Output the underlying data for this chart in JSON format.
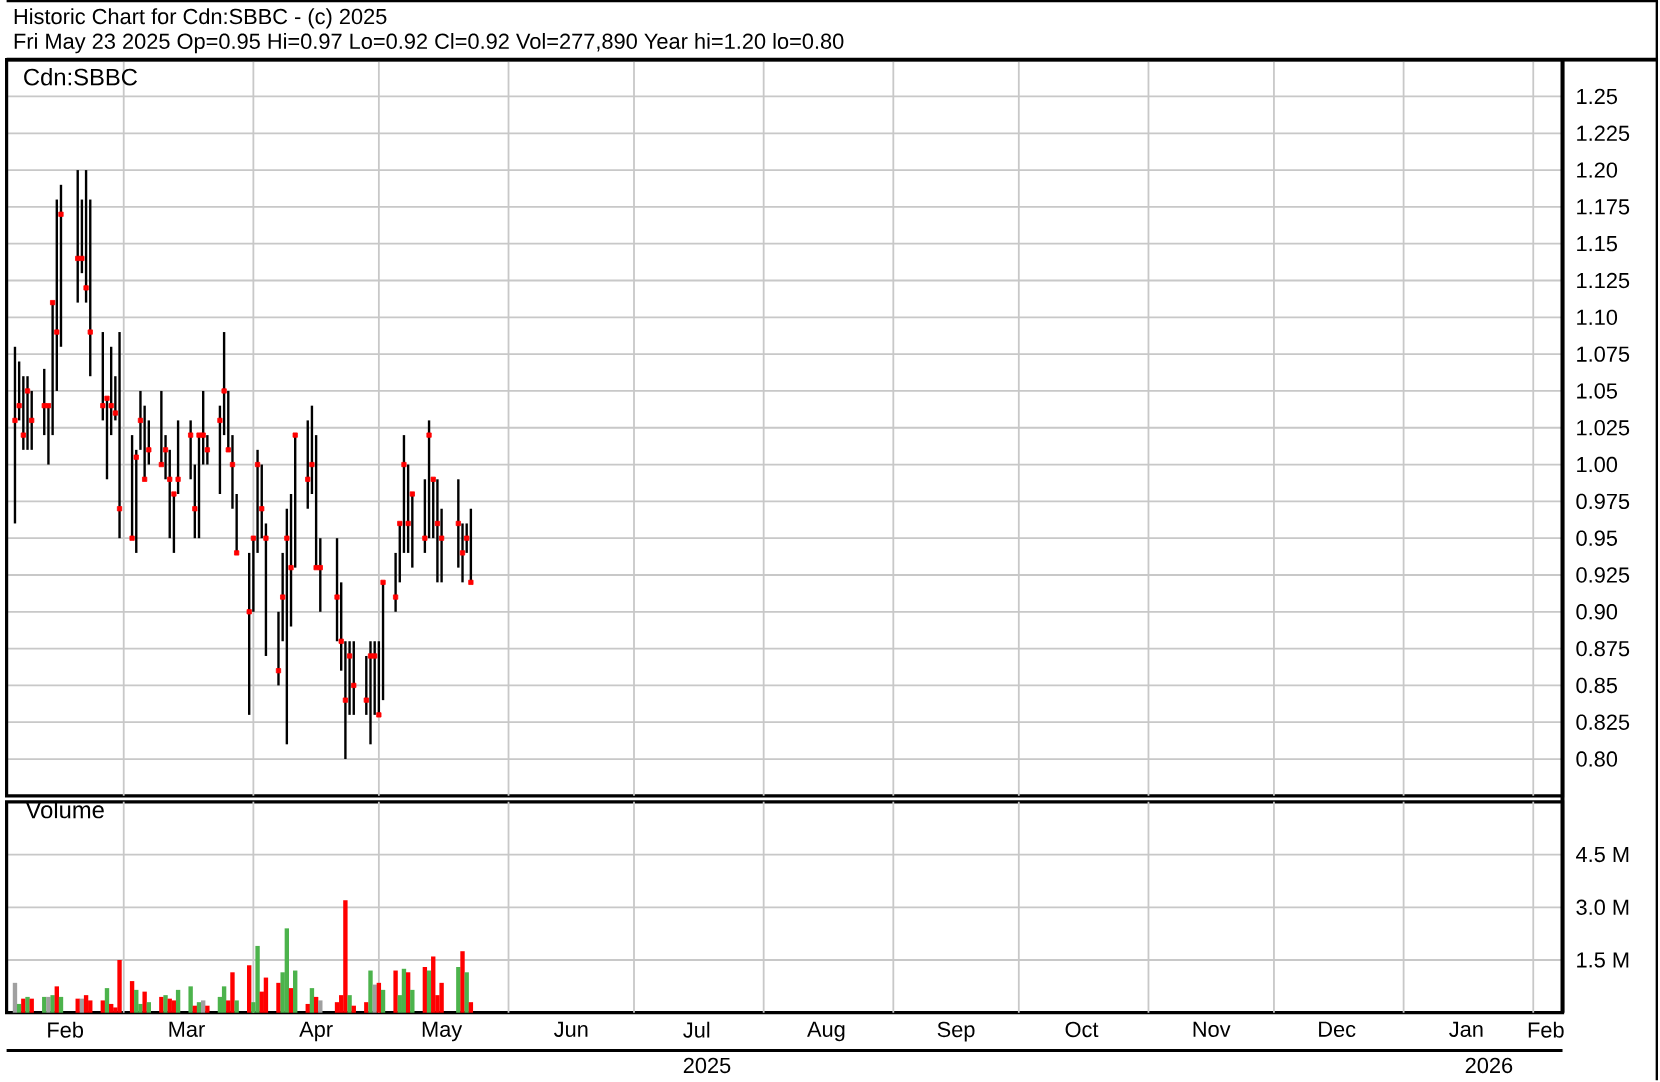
{
  "chart_data": [
    {
      "type": "scatter",
      "title": "Historic Chart for Cdn:SBBC - (c) 2025",
      "subtitle": "Fri May 23 2025  Op=0.95  Hi=0.97  Lo=0.92  Cl=0.92  Vol=277,890  Year hi=1.20  lo=0.80",
      "annotations": [
        "Cdn:SBBC"
      ],
      "color": "#ff0000",
      "marker": "square",
      "grid": true,
      "tick_labels": "y",
      "x": [
        "2025-02-03",
        "2025-02-04",
        "2025-02-05",
        "2025-02-06",
        "2025-02-07",
        "2025-02-10",
        "2025-02-11",
        "2025-02-12",
        "2025-02-13",
        "2025-02-14",
        "2025-02-18",
        "2025-02-19",
        "2025-02-20",
        "2025-02-21",
        "2025-02-24",
        "2025-02-25",
        "2025-02-26",
        "2025-02-27",
        "2025-02-28",
        "2025-03-03",
        "2025-03-04",
        "2025-03-05",
        "2025-03-06",
        "2025-03-07",
        "2025-03-10",
        "2025-03-11",
        "2025-03-12",
        "2025-03-13",
        "2025-03-14",
        "2025-03-17",
        "2025-03-18",
        "2025-03-19",
        "2025-03-20",
        "2025-03-21",
        "2025-03-24",
        "2025-03-25",
        "2025-03-26",
        "2025-03-27",
        "2025-03-28",
        "2025-03-31",
        "2025-04-01",
        "2025-04-02",
        "2025-04-03",
        "2025-04-04",
        "2025-04-07",
        "2025-04-08",
        "2025-04-09",
        "2025-04-10",
        "2025-04-11",
        "2025-04-14",
        "2025-04-15",
        "2025-04-16",
        "2025-04-17",
        "2025-04-21",
        "2025-04-22",
        "2025-04-23",
        "2025-04-24",
        "2025-04-25",
        "2025-04-28",
        "2025-04-29",
        "2025-04-30",
        "2025-05-01",
        "2025-05-02",
        "2025-05-05",
        "2025-05-06",
        "2025-05-07",
        "2025-05-08",
        "2025-05-09",
        "2025-05-12",
        "2025-05-13",
        "2025-05-14",
        "2025-05-15",
        "2025-05-16",
        "2025-05-20",
        "2025-05-21",
        "2025-05-22",
        "2025-05-23"
      ],
      "values": [
        1.03,
        1.04,
        1.02,
        1.05,
        1.03,
        1.04,
        1.04,
        1.11,
        1.09,
        1.17,
        1.14,
        1.14,
        1.12,
        1.09,
        1.04,
        1.045,
        1.04,
        1.035,
        0.97,
        0.95,
        1.005,
        1.03,
        0.99,
        1.01,
        1.0,
        1.01,
        0.99,
        0.98,
        0.99,
        1.02,
        0.97,
        1.02,
        1.02,
        1.01,
        1.03,
        1.05,
        1.01,
        1.0,
        0.94,
        0.9,
        0.95,
        1.0,
        0.97,
        0.95,
        0.86,
        0.91,
        0.95,
        0.93,
        1.02,
        0.99,
        1.0,
        0.93,
        0.93,
        0.91,
        0.88,
        0.84,
        0.87,
        0.85,
        0.84,
        0.87,
        0.87,
        0.83,
        0.92,
        0.91,
        0.96,
        1.0,
        0.96,
        0.98,
        0.95,
        1.02,
        0.99,
        0.96,
        0.95,
        0.96,
        0.94,
        0.95,
        0.92
      ],
      "errors": [
        [
          0.96,
          1.08
        ],
        [
          1.03,
          1.07
        ],
        [
          1.01,
          1.06
        ],
        [
          1.01,
          1.06
        ],
        [
          1.01,
          1.05
        ],
        [
          1.02,
          1.065
        ],
        [
          1.0,
          1.04
        ],
        [
          1.02,
          1.11
        ],
        [
          1.05,
          1.18
        ],
        [
          1.08,
          1.19
        ],
        [
          1.11,
          1.2
        ],
        [
          1.13,
          1.18
        ],
        [
          1.11,
          1.2
        ],
        [
          1.06,
          1.18
        ],
        [
          1.03,
          1.09
        ],
        [
          0.99,
          1.045
        ],
        [
          1.02,
          1.08
        ],
        [
          1.03,
          1.06
        ],
        [
          0.95,
          1.09
        ],
        [
          0.95,
          1.02
        ],
        [
          0.94,
          1.01
        ],
        [
          1.01,
          1.05
        ],
        [
          0.99,
          1.04
        ],
        [
          1.0,
          1.03
        ],
        [
          1.0,
          1.05
        ],
        [
          0.99,
          1.02
        ],
        [
          0.95,
          1.01
        ],
        [
          0.94,
          0.98
        ],
        [
          0.98,
          1.03
        ],
        [
          0.99,
          1.03
        ],
        [
          0.95,
          1.0
        ],
        [
          0.95,
          1.02
        ],
        [
          1.0,
          1.05
        ],
        [
          1.0,
          1.02
        ],
        [
          0.98,
          1.04
        ],
        [
          1.02,
          1.09
        ],
        [
          1.01,
          1.05
        ],
        [
          0.97,
          1.02
        ],
        [
          0.94,
          0.98
        ],
        [
          0.83,
          0.94
        ],
        [
          0.9,
          0.95
        ],
        [
          0.94,
          1.01
        ],
        [
          0.95,
          1.0
        ],
        [
          0.87,
          0.96
        ],
        [
          0.85,
          0.9
        ],
        [
          0.88,
          0.94
        ],
        [
          0.81,
          0.97
        ],
        [
          0.89,
          0.98
        ],
        [
          0.93,
          1.02
        ],
        [
          0.97,
          1.03
        ],
        [
          0.98,
          1.04
        ],
        [
          0.93,
          1.02
        ],
        [
          0.9,
          0.95
        ],
        [
          0.88,
          0.95
        ],
        [
          0.86,
          0.92
        ],
        [
          0.8,
          0.88
        ],
        [
          0.83,
          0.88
        ],
        [
          0.83,
          0.88
        ],
        [
          0.83,
          0.87
        ],
        [
          0.81,
          0.88
        ],
        [
          0.83,
          0.88
        ],
        [
          0.83,
          0.88
        ],
        [
          0.84,
          0.92
        ],
        [
          0.9,
          0.94
        ],
        [
          0.92,
          0.96
        ],
        [
          0.94,
          1.02
        ],
        [
          0.94,
          1.0
        ],
        [
          0.93,
          0.98
        ],
        [
          0.94,
          0.99
        ],
        [
          0.95,
          1.03
        ],
        [
          0.95,
          0.99
        ],
        [
          0.92,
          0.99
        ],
        [
          0.92,
          0.97
        ],
        [
          0.93,
          0.99
        ],
        [
          0.92,
          0.96
        ],
        [
          0.94,
          0.96
        ],
        [
          0.92,
          0.97
        ]
      ],
      "xlim": [
        "2025-02-01",
        "2026-02-08"
      ],
      "ylim": [
        0.775,
        1.275
      ],
      "xticks": [
        {
          "value": "2025-03-01",
          "label": null
        },
        {
          "value": "2025-04-01",
          "label": null
        },
        {
          "value": "2025-05-01",
          "label": null
        },
        {
          "value": "2025-06-01",
          "label": null
        },
        {
          "value": "2025-07-01",
          "label": null
        },
        {
          "value": "2025-08-01",
          "label": null
        },
        {
          "value": "2025-09-01",
          "label": null
        },
        {
          "value": "2025-10-01",
          "label": null
        },
        {
          "value": "2025-11-01",
          "label": null
        },
        {
          "value": "2025-12-01",
          "label": null
        },
        {
          "value": "2026-01-01",
          "label": null
        },
        {
          "value": "2026-02-01",
          "label": null
        }
      ],
      "yticks": [
        {
          "value": 0.8,
          "label": "0.80"
        },
        0.825,
        0.85,
        0.875,
        {
          "value": 0.9,
          "label": "0.90"
        },
        0.925,
        0.95,
        0.975,
        {
          "value": 1.0,
          "label": "1.00"
        },
        1.025,
        1.05,
        1.075,
        {
          "value": 1.1,
          "label": "1.10"
        },
        1.125,
        1.15,
        1.175,
        {
          "value": 1.2,
          "label": "1.20"
        },
        1.225,
        1.25
      ]
    },
    {
      "type": "bar",
      "title": "Volume",
      "grid": true,
      "x": [
        "2025-02-03",
        "2025-02-04",
        "2025-02-05",
        "2025-02-06",
        "2025-02-07",
        "2025-02-10",
        "2025-02-11",
        "2025-02-12",
        "2025-02-13",
        "2025-02-14",
        "2025-02-18",
        "2025-02-19",
        "2025-02-20",
        "2025-02-21",
        "2025-02-24",
        "2025-02-25",
        "2025-02-26",
        "2025-02-27",
        "2025-02-28",
        "2025-03-03",
        "2025-03-04",
        "2025-03-05",
        "2025-03-06",
        "2025-03-07",
        "2025-03-10",
        "2025-03-11",
        "2025-03-12",
        "2025-03-13",
        "2025-03-14",
        "2025-03-17",
        "2025-03-18",
        "2025-03-19",
        "2025-03-20",
        "2025-03-21",
        "2025-03-24",
        "2025-03-25",
        "2025-03-26",
        "2025-03-27",
        "2025-03-28",
        "2025-03-31",
        "2025-04-01",
        "2025-04-02",
        "2025-04-03",
        "2025-04-04",
        "2025-04-07",
        "2025-04-08",
        "2025-04-09",
        "2025-04-10",
        "2025-04-11",
        "2025-04-14",
        "2025-04-15",
        "2025-04-16",
        "2025-04-17",
        "2025-04-21",
        "2025-04-22",
        "2025-04-23",
        "2025-04-24",
        "2025-04-25",
        "2025-04-28",
        "2025-04-29",
        "2025-04-30",
        "2025-05-01",
        "2025-05-02",
        "2025-05-05",
        "2025-05-06",
        "2025-05-07",
        "2025-05-08",
        "2025-05-09",
        "2025-05-12",
        "2025-05-13",
        "2025-05-14",
        "2025-05-15",
        "2025-05-16",
        "2025-05-20",
        "2025-05-21",
        "2025-05-22",
        "2025-05-23"
      ],
      "values": [
        850000,
        250000,
        400000,
        450000,
        400000,
        450000,
        450000,
        500000,
        750000,
        450000,
        400000,
        400000,
        500000,
        350000,
        350000,
        700000,
        250000,
        150000,
        1500000,
        900000,
        650000,
        250000,
        600000,
        300000,
        450000,
        500000,
        400000,
        350000,
        650000,
        750000,
        200000,
        300000,
        350000,
        200000,
        450000,
        750000,
        350000,
        1150000,
        350000,
        1350000,
        300000,
        1900000,
        600000,
        1000000,
        850000,
        1150000,
        2400000,
        700000,
        1200000,
        250000,
        700000,
        450000,
        350000,
        300000,
        500000,
        3200000,
        500000,
        200000,
        300000,
        1200000,
        800000,
        850000,
        650000,
        1200000,
        500000,
        1250000,
        1150000,
        650000,
        1300000,
        1200000,
        1600000,
        500000,
        850000,
        1300000,
        1750000,
        1150000,
        300000
      ],
      "colors": [
        "#a0a0a0",
        "#4cb34c",
        "#ff0000",
        "#4cb34c",
        "#ff0000",
        "#4cb34c",
        "#a0a0a0",
        "#4cb34c",
        "#ff0000",
        "#4cb34c",
        "#ff0000",
        "#a0a0a0",
        "#ff0000",
        "#ff0000",
        "#ff0000",
        "#4cb34c",
        "#ff0000",
        "#ff0000",
        "#ff0000",
        "#ff0000",
        "#4cb34c",
        "#4cb34c",
        "#ff0000",
        "#4cb34c",
        "#ff0000",
        "#4cb34c",
        "#ff0000",
        "#ff0000",
        "#4cb34c",
        "#4cb34c",
        "#ff0000",
        "#4cb34c",
        "#a0a0a0",
        "#ff0000",
        "#4cb34c",
        "#4cb34c",
        "#ff0000",
        "#ff0000",
        "#4cb34c",
        "#ff0000",
        "#4cb34c",
        "#4cb34c",
        "#ff0000",
        "#ff0000",
        "#ff0000",
        "#4cb34c",
        "#4cb34c",
        "#ff0000",
        "#4cb34c",
        "#ff0000",
        "#4cb34c",
        "#ff0000",
        "#a0a0a0",
        "#ff0000",
        "#ff0000",
        "#ff0000",
        "#4cb34c",
        "#ff0000",
        "#ff0000",
        "#4cb34c",
        "#a0a0a0",
        "#ff0000",
        "#4cb34c",
        "#ff0000",
        "#4cb34c",
        "#4cb34c",
        "#ff0000",
        "#4cb34c",
        "#ff0000",
        "#4cb34c",
        "#ff0000",
        "#ff0000",
        "#ff0000",
        "#4cb34c",
        "#ff0000",
        "#4cb34c",
        "#ff0000"
      ],
      "xlim": [
        "2025-02-01",
        "2026-02-08"
      ],
      "ylim": [
        0,
        6000000
      ],
      "xticks": [
        {
          "value": "2025-02-15",
          "label": "Feb"
        },
        {
          "value": "2025-03-01",
          "label": null
        },
        {
          "value": "2025-03-16",
          "label": "Mar"
        },
        {
          "value": "2025-04-01",
          "label": null
        },
        {
          "value": "2025-04-16",
          "label": "Apr"
        },
        {
          "value": "2025-05-01",
          "label": null
        },
        {
          "value": "2025-05-16",
          "label": "May"
        },
        {
          "value": "2025-06-01",
          "label": null
        },
        {
          "value": "2025-06-16",
          "label": "Jun"
        },
        {
          "value": "2025-07-01",
          "label": null
        },
        {
          "value": "2025-07-16",
          "label": "Jul"
        },
        {
          "value": "2025-08-01",
          "label": null
        },
        {
          "value": "2025-08-16",
          "label": "Aug"
        },
        {
          "value": "2025-09-01",
          "label": null
        },
        {
          "value": "2025-09-16",
          "label": "Sep"
        },
        {
          "value": "2025-10-01",
          "label": null
        },
        {
          "value": "2025-10-16",
          "label": "Oct"
        },
        {
          "value": "2025-11-01",
          "label": null
        },
        {
          "value": "2025-11-16",
          "label": "Nov"
        },
        {
          "value": "2025-12-01",
          "label": null
        },
        {
          "value": "2025-12-16",
          "label": "Dec"
        },
        {
          "value": "2026-01-01",
          "label": null
        },
        {
          "value": "2026-01-16",
          "label": "Jan"
        },
        {
          "value": "2026-02-01",
          "label": null
        },
        {
          "value": "2026-02-04",
          "label": "Feb"
        }
      ],
      "yticks": [
        {
          "value": 1500000,
          "label": "1.5 M"
        },
        {
          "value": 3000000,
          "label": "3.0 M"
        },
        {
          "value": 4500000,
          "label": "4.5 M"
        }
      ],
      "annotations": [
        "2025",
        "2026"
      ]
    }
  ]
}
